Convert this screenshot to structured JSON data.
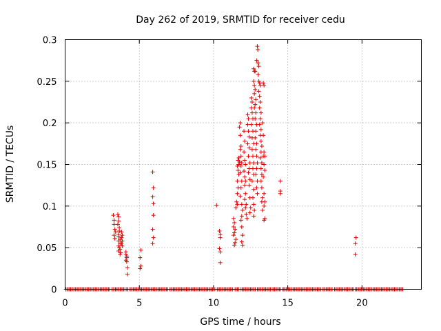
{
  "chart_data": {
    "type": "scatter",
    "title": "Day 262 of 2019, SRMTID for receiver cedu",
    "xlabel": "GPS time / hours",
    "ylabel": "SRMTID / TECUs",
    "xlim": [
      0,
      24
    ],
    "ylim": [
      0,
      0.3
    ],
    "xticks": [
      0,
      5,
      10,
      15,
      20
    ],
    "xtick_labels": [
      "0",
      "5",
      "10",
      "15",
      "20"
    ],
    "yticks": [
      0,
      0.05,
      0.1,
      0.15,
      0.2,
      0.25,
      0.3
    ],
    "ytick_labels": [
      "0",
      "0.05",
      "0.1",
      "0.15",
      "0.2",
      "0.25",
      "0.3"
    ],
    "grid": true,
    "marker": "plus",
    "color": "#dd0000",
    "baseline": {
      "y": 0,
      "ranges": [
        [
          0.05,
          3.05
        ],
        [
          3.15,
          4.05
        ],
        [
          4.15,
          4.25
        ],
        [
          4.35,
          6.95
        ],
        [
          7.05,
          10.15
        ],
        [
          10.25,
          11.35
        ],
        [
          11.45,
          11.75
        ],
        [
          11.85,
          12.85
        ],
        [
          12.95,
          13.85
        ],
        [
          13.95,
          14.55
        ],
        [
          14.65,
          16.25
        ],
        [
          16.35,
          17.25
        ],
        [
          17.35,
          18.05
        ],
        [
          18.15,
          19.45
        ],
        [
          19.55,
          22.75
        ]
      ],
      "step": 0.08
    },
    "points": [
      [
        3.25,
        0.089
      ],
      [
        3.3,
        0.083
      ],
      [
        3.3,
        0.078
      ],
      [
        3.35,
        0.072
      ],
      [
        3.4,
        0.069
      ],
      [
        3.3,
        0.065
      ],
      [
        3.35,
        0.061
      ],
      [
        3.55,
        0.09
      ],
      [
        3.6,
        0.087
      ],
      [
        3.6,
        0.082
      ],
      [
        3.55,
        0.078
      ],
      [
        3.65,
        0.074
      ],
      [
        3.65,
        0.07
      ],
      [
        3.6,
        0.066
      ],
      [
        3.6,
        0.063
      ],
      [
        3.7,
        0.06
      ],
      [
        3.6,
        0.058
      ],
      [
        3.7,
        0.055
      ],
      [
        3.6,
        0.052
      ],
      [
        3.65,
        0.05
      ],
      [
        3.7,
        0.048
      ],
      [
        3.6,
        0.046
      ],
      [
        3.75,
        0.044
      ],
      [
        3.7,
        0.042
      ],
      [
        3.8,
        0.069
      ],
      [
        3.85,
        0.065
      ],
      [
        3.8,
        0.062
      ],
      [
        3.85,
        0.058
      ],
      [
        3.8,
        0.055
      ],
      [
        3.85,
        0.052
      ],
      [
        4.1,
        0.045
      ],
      [
        4.1,
        0.042
      ],
      [
        4.15,
        0.04
      ],
      [
        4.15,
        0.038
      ],
      [
        4.1,
        0.035
      ],
      [
        4.15,
        0.033
      ],
      [
        4.2,
        0.026
      ],
      [
        4.2,
        0.018
      ],
      [
        5.1,
        0.047
      ],
      [
        5.05,
        0.038
      ],
      [
        5.1,
        0.028
      ],
      [
        5.05,
        0.025
      ],
      [
        5.9,
        0.141
      ],
      [
        5.95,
        0.122
      ],
      [
        5.9,
        0.111
      ],
      [
        5.95,
        0.103
      ],
      [
        5.95,
        0.089
      ],
      [
        5.9,
        0.072
      ],
      [
        5.95,
        0.062
      ],
      [
        5.9,
        0.055
      ],
      [
        10.2,
        0.101
      ],
      [
        10.4,
        0.07
      ],
      [
        10.45,
        0.066
      ],
      [
        10.45,
        0.062
      ],
      [
        10.4,
        0.049
      ],
      [
        10.45,
        0.045
      ],
      [
        10.45,
        0.032
      ],
      [
        11.35,
        0.085
      ],
      [
        11.4,
        0.08
      ],
      [
        11.35,
        0.075
      ],
      [
        11.45,
        0.072
      ],
      [
        11.4,
        0.068
      ],
      [
        11.35,
        0.065
      ],
      [
        11.5,
        0.06
      ],
      [
        11.45,
        0.056
      ],
      [
        11.4,
        0.053
      ],
      [
        11.5,
        0.098
      ],
      [
        11.55,
        0.105
      ],
      [
        11.6,
        0.102
      ],
      [
        11.6,
        0.115
      ],
      [
        11.65,
        0.122
      ],
      [
        11.6,
        0.13
      ],
      [
        11.7,
        0.138
      ],
      [
        11.65,
        0.143
      ],
      [
        11.6,
        0.148
      ],
      [
        11.7,
        0.15
      ],
      [
        11.75,
        0.153
      ],
      [
        11.65,
        0.155
      ],
      [
        11.7,
        0.158
      ],
      [
        11.75,
        0.195
      ],
      [
        11.8,
        0.2
      ],
      [
        11.8,
        0.185
      ],
      [
        11.85,
        0.172
      ],
      [
        11.8,
        0.168
      ],
      [
        11.85,
        0.16
      ],
      [
        11.9,
        0.152
      ],
      [
        11.85,
        0.148
      ],
      [
        11.8,
        0.14
      ],
      [
        11.9,
        0.13
      ],
      [
        11.85,
        0.122
      ],
      [
        11.8,
        0.112
      ],
      [
        11.9,
        0.102
      ],
      [
        11.95,
        0.095
      ],
      [
        11.9,
        0.088
      ],
      [
        11.85,
        0.083
      ],
      [
        11.9,
        0.075
      ],
      [
        11.95,
        0.065
      ],
      [
        11.9,
        0.057
      ],
      [
        11.95,
        0.053
      ],
      [
        12.05,
        0.19
      ],
      [
        12.1,
        0.178
      ],
      [
        12.05,
        0.165
      ],
      [
        12.1,
        0.155
      ],
      [
        12.15,
        0.15
      ],
      [
        12.05,
        0.142
      ],
      [
        12.1,
        0.135
      ],
      [
        12.15,
        0.13
      ],
      [
        12.1,
        0.125
      ],
      [
        12.15,
        0.115
      ],
      [
        12.1,
        0.108
      ],
      [
        12.2,
        0.102
      ],
      [
        12.15,
        0.098
      ],
      [
        12.2,
        0.09
      ],
      [
        12.25,
        0.085
      ],
      [
        12.3,
        0.21
      ],
      [
        12.35,
        0.205
      ],
      [
        12.3,
        0.198
      ],
      [
        12.35,
        0.19
      ],
      [
        12.4,
        0.183
      ],
      [
        12.3,
        0.175
      ],
      [
        12.4,
        0.17
      ],
      [
        12.35,
        0.16
      ],
      [
        12.45,
        0.152
      ],
      [
        12.4,
        0.145
      ],
      [
        12.35,
        0.14
      ],
      [
        12.45,
        0.132
      ],
      [
        12.4,
        0.125
      ],
      [
        12.45,
        0.11
      ],
      [
        12.5,
        0.098
      ],
      [
        12.45,
        0.092
      ],
      [
        12.55,
        0.23
      ],
      [
        12.6,
        0.225
      ],
      [
        12.55,
        0.218
      ],
      [
        12.6,
        0.212
      ],
      [
        12.65,
        0.205
      ],
      [
        12.55,
        0.198
      ],
      [
        12.65,
        0.19
      ],
      [
        12.6,
        0.182
      ],
      [
        12.7,
        0.175
      ],
      [
        12.6,
        0.168
      ],
      [
        12.65,
        0.16
      ],
      [
        12.7,
        0.152
      ],
      [
        12.65,
        0.145
      ],
      [
        12.7,
        0.138
      ],
      [
        12.6,
        0.13
      ],
      [
        12.7,
        0.12
      ],
      [
        12.65,
        0.11
      ],
      [
        12.7,
        0.102
      ],
      [
        12.75,
        0.095
      ],
      [
        12.7,
        0.088
      ],
      [
        12.7,
        0.265
      ],
      [
        12.75,
        0.262
      ],
      [
        12.8,
        0.262
      ],
      [
        12.7,
        0.25
      ],
      [
        12.75,
        0.245
      ],
      [
        12.8,
        0.24
      ],
      [
        12.75,
        0.235
      ],
      [
        12.85,
        0.228
      ],
      [
        12.8,
        0.222
      ],
      [
        12.75,
        0.218
      ],
      [
        12.85,
        0.212
      ],
      [
        12.8,
        0.205
      ],
      [
        12.9,
        0.198
      ],
      [
        12.85,
        0.19
      ],
      [
        12.8,
        0.182
      ],
      [
        12.9,
        0.175
      ],
      [
        12.85,
        0.168
      ],
      [
        12.9,
        0.16
      ],
      [
        12.95,
        0.152
      ],
      [
        12.9,
        0.145
      ],
      [
        12.85,
        0.138
      ],
      [
        12.95,
        0.13
      ],
      [
        12.9,
        0.122
      ],
      [
        12.95,
        0.115
      ],
      [
        12.95,
        0.292
      ],
      [
        12.98,
        0.288
      ],
      [
        12.9,
        0.275
      ],
      [
        13.0,
        0.272
      ],
      [
        13.05,
        0.268
      ],
      [
        13.0,
        0.258
      ],
      [
        13.05,
        0.25
      ],
      [
        13.1,
        0.248
      ],
      [
        13.15,
        0.245
      ],
      [
        13.05,
        0.238
      ],
      [
        13.1,
        0.232
      ],
      [
        13.15,
        0.225
      ],
      [
        13.1,
        0.218
      ],
      [
        13.2,
        0.212
      ],
      [
        13.15,
        0.205
      ],
      [
        13.1,
        0.198
      ],
      [
        13.2,
        0.192
      ],
      [
        13.15,
        0.185
      ],
      [
        13.2,
        0.178
      ],
      [
        13.25,
        0.172
      ],
      [
        13.2,
        0.165
      ],
      [
        13.15,
        0.158
      ],
      [
        13.25,
        0.152
      ],
      [
        13.2,
        0.145
      ],
      [
        13.25,
        0.138
      ],
      [
        13.2,
        0.13
      ],
      [
        13.25,
        0.122
      ],
      [
        13.3,
        0.11
      ],
      [
        13.25,
        0.105
      ],
      [
        13.3,
        0.095
      ],
      [
        13.35,
        0.248
      ],
      [
        13.4,
        0.245
      ],
      [
        13.3,
        0.2
      ],
      [
        13.35,
        0.185
      ],
      [
        13.4,
        0.165
      ],
      [
        13.35,
        0.16
      ],
      [
        13.45,
        0.16
      ],
      [
        13.4,
        0.15
      ],
      [
        13.45,
        0.143
      ],
      [
        13.35,
        0.135
      ],
      [
        13.4,
        0.115
      ],
      [
        13.45,
        0.105
      ],
      [
        13.4,
        0.1
      ],
      [
        13.45,
        0.085
      ],
      [
        13.4,
        0.083
      ],
      [
        14.5,
        0.13
      ],
      [
        14.5,
        0.118
      ],
      [
        14.5,
        0.115
      ],
      [
        19.6,
        0.062
      ],
      [
        19.55,
        0.055
      ],
      [
        19.55,
        0.042
      ]
    ]
  }
}
